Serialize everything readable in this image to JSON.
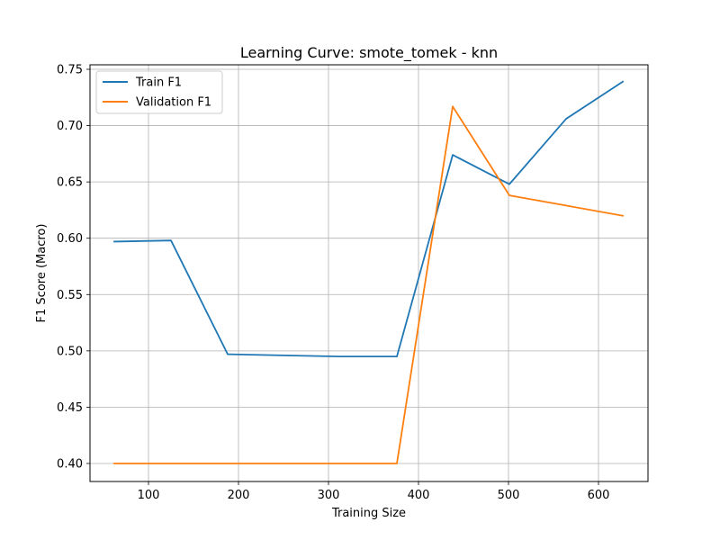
{
  "chart_data": {
    "type": "line",
    "title": "Learning Curve: smote_tomek - knn",
    "xlabel": "Training Size",
    "ylabel": "F1 Score (Macro)",
    "xlim": [
      35,
      655
    ],
    "ylim": [
      0.384,
      0.754
    ],
    "xticks": [
      100,
      200,
      300,
      400,
      500,
      600
    ],
    "yticks": [
      0.4,
      0.45,
      0.5,
      0.55,
      0.6,
      0.65,
      0.7,
      0.75
    ],
    "grid": true,
    "legend_position": "upper left",
    "series": [
      {
        "name": "Train F1",
        "color": "#1f77b4",
        "x": [
          62,
          125,
          188,
          250,
          313,
          376,
          438,
          501,
          564,
          627
        ],
        "y": [
          0.597,
          0.598,
          0.497,
          0.496,
          0.495,
          0.495,
          0.674,
          0.648,
          0.706,
          0.739
        ]
      },
      {
        "name": "Validation F1",
        "color": "#ff7f0e",
        "x": [
          62,
          125,
          188,
          250,
          313,
          376,
          438,
          501,
          564,
          627
        ],
        "y": [
          0.4,
          0.4,
          0.4,
          0.4,
          0.4,
          0.4,
          0.717,
          0.638,
          0.629,
          0.62
        ]
      }
    ]
  }
}
